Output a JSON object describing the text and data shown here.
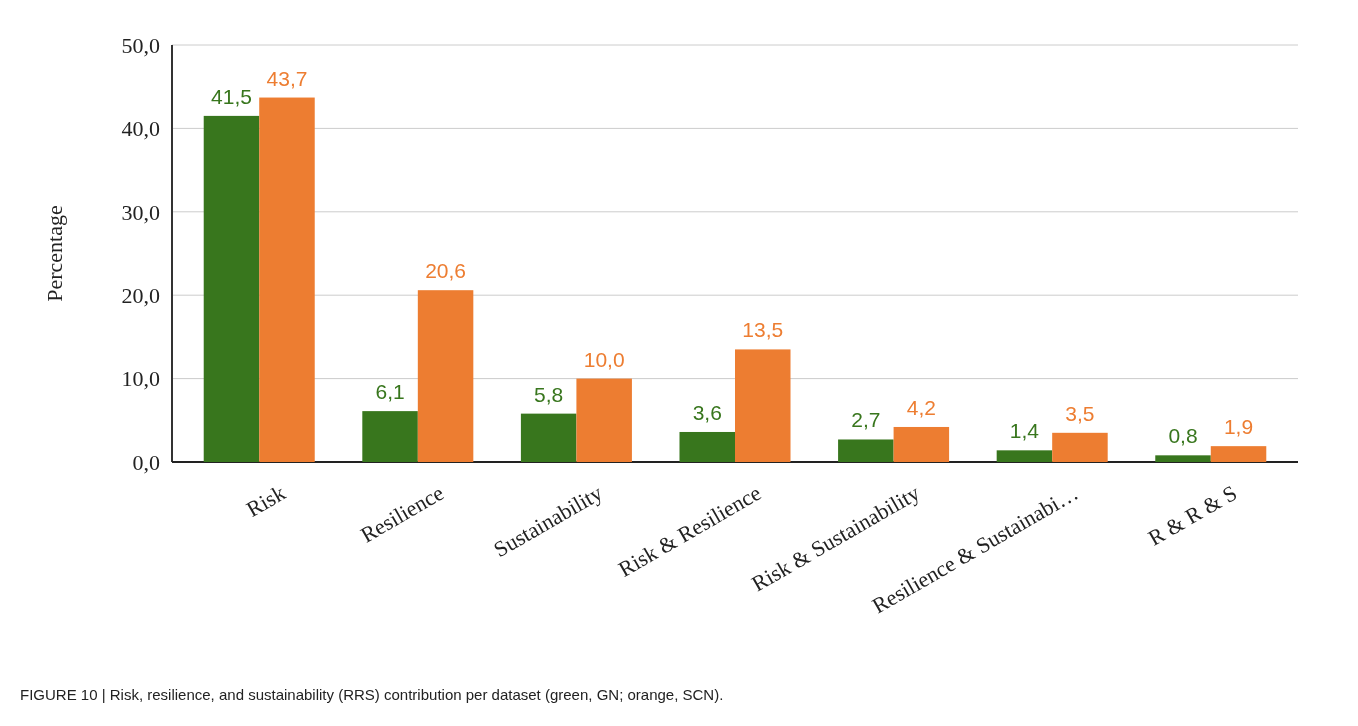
{
  "chart_data": {
    "type": "bar",
    "ylabel": "Percentage",
    "categories": [
      "Risk",
      "Resilience",
      "Sustainability",
      "Risk & Resilience",
      "Risk & Sustainability",
      "Resilience & Sustainabi…",
      "R & R & S"
    ],
    "series": [
      {
        "color": "#38761d",
        "values": [
          41.5,
          6.1,
          5.8,
          3.6,
          2.7,
          1.4,
          0.8
        ],
        "value_labels": [
          "41,5",
          "6,1",
          "5,8",
          "3,6",
          "2,7",
          "1,4",
          "0,8"
        ]
      },
      {
        "color": "#ed7d31",
        "values": [
          43.7,
          20.6,
          10.0,
          13.5,
          4.2,
          3.5,
          1.9
        ],
        "value_labels": [
          "43,7",
          "20,6",
          "10,0",
          "13,5",
          "4,2",
          "3,5",
          "1,9"
        ]
      }
    ],
    "ylim": [
      0,
      50
    ],
    "yticks": [
      {
        "value": 0,
        "label": "0,0"
      },
      {
        "value": 10,
        "label": "10,0"
      },
      {
        "value": 20,
        "label": "20,0"
      },
      {
        "value": 30,
        "label": "30,0"
      },
      {
        "value": 40,
        "label": "40,0"
      },
      {
        "value": 50,
        "label": "50,0"
      }
    ],
    "grid": "y",
    "annotations": [
      "FIGURE 10 | Risk, resilience, and sustainability (RRS) contribution per dataset (green, GN; orange, SCN)."
    ]
  }
}
